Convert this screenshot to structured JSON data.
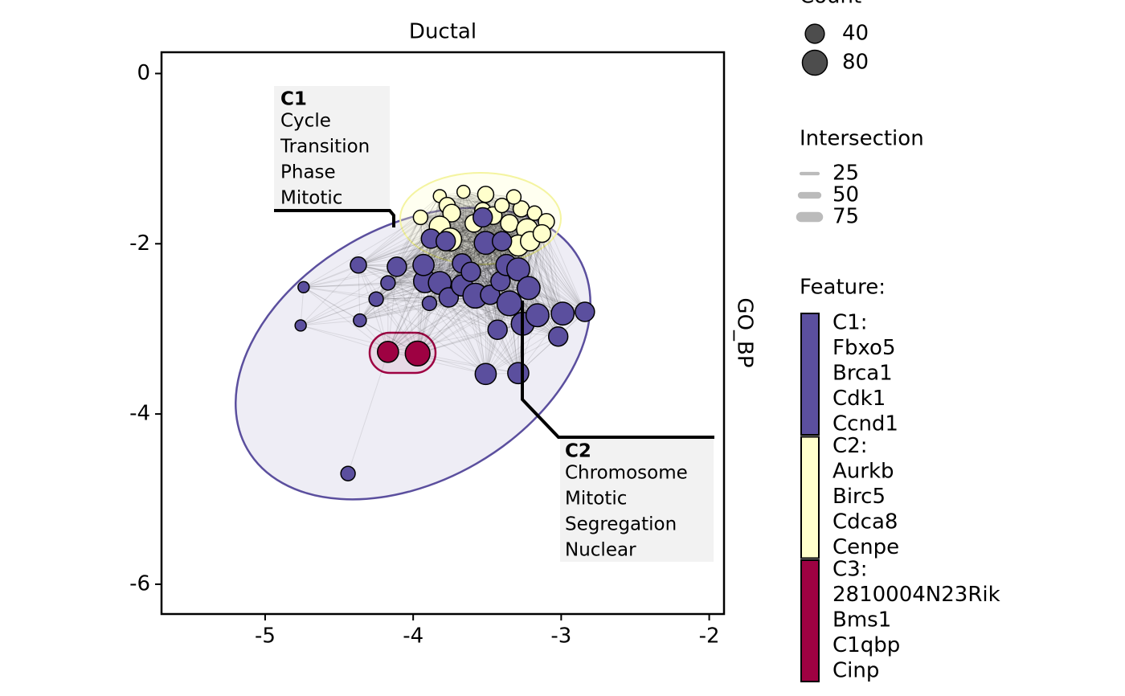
{
  "chart_data": {
    "type": "scatter",
    "title": "Ductal",
    "facet_label": "GO_BP",
    "xlim": [
      -5.7,
      -1.9
    ],
    "xticks": [
      -5,
      -4,
      -3,
      -2
    ],
    "ylim": [
      -6.35,
      0.25
    ],
    "yticks": [
      0,
      -2,
      -4,
      -6
    ],
    "series": [
      {
        "name": "C2:",
        "color": "#ffffcc",
        "features": [
          "Aurkb",
          "Birc5",
          "Cdca8",
          "Cenpe"
        ],
        "x": [
          -3.95,
          -3.82,
          -3.77,
          -3.66,
          -3.51,
          -3.74,
          -3.82,
          -3.75,
          -3.59,
          -3.53,
          -3.46,
          -3.4,
          -3.35,
          -3.27,
          -3.18,
          -3.23,
          -3.29,
          -3.21,
          -3.1,
          -3.13,
          -3.32
        ],
        "y": [
          -1.69,
          -1.44,
          -1.55,
          -1.39,
          -1.42,
          -1.64,
          -1.8,
          -1.95,
          -1.76,
          -1.61,
          -1.67,
          -1.55,
          -1.76,
          -1.59,
          -1.64,
          -1.83,
          -2.02,
          -1.97,
          -1.74,
          -1.88,
          -1.45
        ],
        "size": [
          18,
          13,
          25,
          13,
          25,
          32,
          52,
          64,
          32,
          25,
          32,
          18,
          32,
          25,
          18,
          52,
          52,
          41,
          25,
          32,
          18
        ]
      },
      {
        "name": "C1:",
        "color": "#5b4f9e",
        "features": [
          "Fbxo5",
          "Brca1",
          "Cdk1",
          "Ccnd1"
        ],
        "x": [
          -4.37,
          -4.74,
          -4.76,
          -4.36,
          -4.25,
          -4.17,
          -4.11,
          -4.44,
          -3.89,
          -3.92,
          -3.93,
          -3.88,
          -3.82,
          -3.76,
          -3.67,
          -3.67,
          -3.61,
          -3.58,
          -3.51,
          -3.51,
          -3.48,
          -3.43,
          -3.41,
          -3.37,
          -3.35,
          -3.29,
          -3.29,
          -3.26,
          -3.22,
          -3.16,
          -3.02,
          -2.99,
          -2.84,
          -3.53,
          -3.4,
          -3.78
        ],
        "y": [
          -2.25,
          -2.51,
          -2.96,
          -2.9,
          -2.65,
          -2.46,
          -2.27,
          -4.7,
          -2.7,
          -2.44,
          -2.25,
          -1.94,
          -2.46,
          -2.63,
          -2.49,
          -2.23,
          -2.33,
          -2.61,
          -1.99,
          -3.53,
          -2.6,
          -3.01,
          -2.44,
          -2.25,
          -2.7,
          -2.3,
          -3.52,
          -2.94,
          -2.52,
          -2.84,
          -3.09,
          -2.82,
          -2.8,
          -1.69,
          -1.97,
          -1.97
        ],
        "size": [
          25,
          8,
          8,
          13,
          18,
          18,
          41,
          18,
          18,
          64,
          52,
          41,
          64,
          41,
          52,
          41,
          41,
          78,
          64,
          52,
          41,
          41,
          41,
          52,
          78,
          64,
          52,
          64,
          64,
          64,
          41,
          64,
          41,
          41,
          41,
          41
        ]
      },
      {
        "name": "C3:",
        "color": "#9e0142",
        "features": [
          "2810004N23Rik",
          "Bms1",
          "C1qbp",
          "Cinp"
        ],
        "x": [
          -4.17,
          -3.97
        ],
        "y": [
          -3.27,
          -3.29
        ],
        "size": [
          52,
          78
        ]
      }
    ],
    "annotations": [
      {
        "title": "C1",
        "lines": [
          "Cycle",
          "Transition",
          "Phase",
          "Mitotic"
        ]
      },
      {
        "title": "C2",
        "lines": [
          "Chromosome",
          "Mitotic",
          "Segregation",
          "Nuclear"
        ]
      }
    ],
    "size_legend": {
      "title": "Count",
      "values": [
        40,
        80
      ]
    },
    "width_legend": {
      "title": "Intersection",
      "values": [
        25,
        50,
        75
      ]
    },
    "color_legend_title": "Feature:"
  }
}
